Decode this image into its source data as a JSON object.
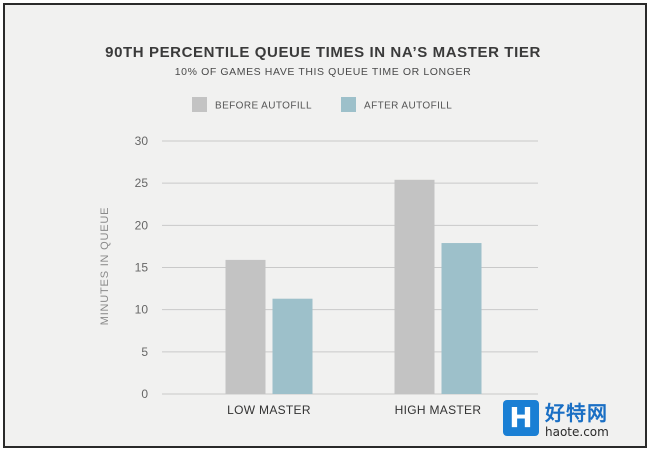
{
  "chart_data": {
    "type": "bar",
    "title": "90TH PERCENTILE QUEUE TIMES IN NA’S MASTER TIER",
    "subtitle": "10% OF GAMES HAVE THIS QUEUE TIME OR LONGER",
    "categories": [
      "LOW MASTER",
      "HIGH MASTER"
    ],
    "series": [
      {
        "name": "BEFORE AUTOFILL",
        "color": "#c3c3c3",
        "values": [
          15.9,
          25.4
        ]
      },
      {
        "name": "AFTER AUTOFILL",
        "color": "#9dc0ca",
        "values": [
          11.3,
          17.9
        ]
      }
    ],
    "xlabel": "",
    "ylabel": "MINUTES IN QUEUE",
    "ylim": [
      0,
      30
    ],
    "yticks": [
      0,
      5,
      10,
      15,
      20,
      25,
      30
    ],
    "grid": true,
    "legend_position": "top-center"
  },
  "watermark": {
    "badge": "H",
    "name": "好特网",
    "url": "haote.com"
  }
}
